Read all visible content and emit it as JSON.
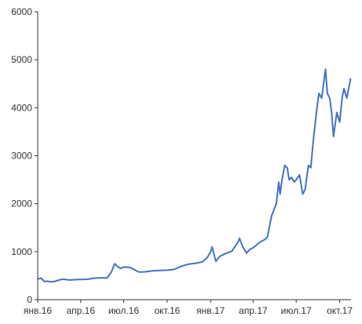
{
  "chart_data": {
    "type": "line",
    "title": "",
    "xlabel": "",
    "ylabel": "",
    "ylim": [
      0,
      6000
    ],
    "xlim": [
      "2016-01-01",
      "2017-10-25"
    ],
    "y_ticks": [
      0,
      1000,
      2000,
      3000,
      4000,
      5000,
      6000
    ],
    "x_ticks": [
      {
        "date": "2016-01-01",
        "label": "янв.16"
      },
      {
        "date": "2016-04-01",
        "label": "апр.16"
      },
      {
        "date": "2016-07-01",
        "label": "июл.16"
      },
      {
        "date": "2016-10-01",
        "label": "окт.16"
      },
      {
        "date": "2017-01-01",
        "label": "янв.17"
      },
      {
        "date": "2017-04-01",
        "label": "апр.17"
      },
      {
        "date": "2017-07-01",
        "label": "июл.17"
      },
      {
        "date": "2017-10-01",
        "label": "окт.17"
      }
    ],
    "grid": {
      "x": false,
      "y": false
    },
    "legend": "none",
    "series_color": "#4472c4",
    "axis_color": "#333333",
    "series": [
      {
        "x": [
          "2016-01-01",
          "2016-01-08",
          "2016-01-15",
          "2016-01-22",
          "2016-01-29",
          "2016-02-05",
          "2016-02-12",
          "2016-02-19",
          "2016-02-26",
          "2016-03-04",
          "2016-03-11",
          "2016-03-18",
          "2016-03-25",
          "2016-04-01",
          "2016-04-15",
          "2016-05-01",
          "2016-05-15",
          "2016-05-27",
          "2016-06-05",
          "2016-06-12",
          "2016-06-17",
          "2016-06-24",
          "2016-07-01",
          "2016-07-15",
          "2016-08-01",
          "2016-08-05",
          "2016-08-15",
          "2016-09-01",
          "2016-09-15",
          "2016-10-01",
          "2016-10-15",
          "2016-11-01",
          "2016-11-15",
          "2016-12-01",
          "2016-12-15",
          "2016-12-25",
          "2017-01-01",
          "2017-01-04",
          "2017-01-12",
          "2017-01-20",
          "2017-02-01",
          "2017-02-15",
          "2017-03-01",
          "2017-03-03",
          "2017-03-10",
          "2017-03-18",
          "2017-03-25",
          "2017-04-01",
          "2017-04-15",
          "2017-04-25",
          "2017-05-01",
          "2017-05-10",
          "2017-05-20",
          "2017-05-25",
          "2017-05-28",
          "2017-06-01",
          "2017-06-07",
          "2017-06-12",
          "2017-06-16",
          "2017-06-21",
          "2017-06-27",
          "2017-07-01",
          "2017-07-08",
          "2017-07-15",
          "2017-07-20",
          "2017-07-27",
          "2017-08-01",
          "2017-08-07",
          "2017-08-14",
          "2017-08-18",
          "2017-08-24",
          "2017-09-01",
          "2017-09-05",
          "2017-09-10",
          "2017-09-14",
          "2017-09-18",
          "2017-09-25",
          "2017-10-01",
          "2017-10-06",
          "2017-10-10",
          "2017-10-16",
          "2017-10-20",
          "2017-10-24"
        ],
        "values": [
          430,
          450,
          380,
          385,
          370,
          380,
          400,
          420,
          425,
          415,
          410,
          415,
          420,
          420,
          425,
          450,
          455,
          455,
          580,
          750,
          700,
          650,
          680,
          670,
          580,
          575,
          580,
          600,
          610,
          615,
          630,
          700,
          740,
          760,
          790,
          880,
          1000,
          1100,
          800,
          900,
          960,
          1010,
          1220,
          1280,
          1100,
          970,
          1050,
          1080,
          1200,
          1250,
          1300,
          1750,
          2000,
          2450,
          2200,
          2500,
          2800,
          2750,
          2500,
          2550,
          2450,
          2500,
          2600,
          2200,
          2300,
          2800,
          2750,
          3400,
          4000,
          4300,
          4200,
          4800,
          4300,
          4200,
          3900,
          3400,
          3900,
          3700,
          4200,
          4400,
          4200,
          4400,
          4600
        ]
      }
    ]
  }
}
